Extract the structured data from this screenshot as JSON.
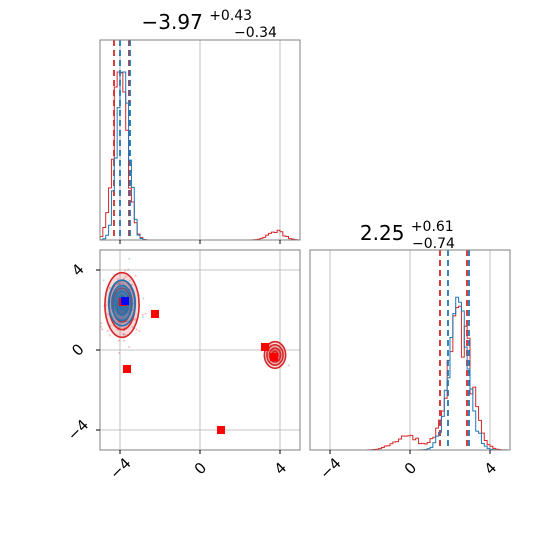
{
  "chart_data": {
    "type": "corner",
    "parameters": [
      {
        "title_value": "2.25",
        "title_prefix": "−3.97",
        "title_plus": "+0.43",
        "title_minus": "−0.34"
      },
      {
        "title_prefix": "2.25",
        "title_plus": "+0.61",
        "title_minus": "−0.74"
      }
    ],
    "axis_range": [
      -5,
      5
    ],
    "ticks": [
      -4,
      0,
      4
    ],
    "tick_labels": [
      "−4",
      "0",
      "4"
    ],
    "grid": true,
    "colors": {
      "red": "#d62728",
      "blue": "#1f77b4",
      "marker_red": "#ff0000",
      "marker_blue": "#0000ff",
      "grid": "#b0b0b0"
    },
    "series": [
      {
        "color": "#d62728",
        "param1_quantile_lines": [
          -4.3,
          -3.55
        ],
        "param2_quantile_lines": [
          1.5,
          2.85
        ],
        "param1_hist_peaks": [
          {
            "x": -3.97,
            "height": 1.0,
            "width": 0.35
          },
          {
            "x": 3.8,
            "height": 0.05,
            "width": 0.4
          }
        ],
        "param2_hist_peaks": [
          {
            "x": 2.45,
            "height": 0.7,
            "width": 0.6
          },
          {
            "x": -0.2,
            "height": 0.08,
            "width": 0.6
          }
        ],
        "clusters": [
          {
            "x": -3.9,
            "y": 2.25,
            "sx": 0.45,
            "sy": 0.85,
            "weight": 0.95
          },
          {
            "x": 3.75,
            "y": -0.25,
            "sx": 0.28,
            "sy": 0.35,
            "weight": 0.05
          }
        ]
      },
      {
        "color": "#1f77b4",
        "param1_quantile_lines": [
          -4.0,
          -3.5
        ],
        "param2_quantile_lines": [
          1.9,
          2.95
        ],
        "param1_hist_peaks": [
          {
            "x": -3.85,
            "height": 1.0,
            "width": 0.3
          }
        ],
        "param2_hist_peaks": [
          {
            "x": 2.45,
            "height": 0.72,
            "width": 0.5
          }
        ],
        "clusters": [
          {
            "x": -3.9,
            "y": 2.35,
            "sx": 0.35,
            "sy": 0.6,
            "weight": 1.0
          }
        ]
      }
    ],
    "markers": {
      "red": [
        {
          "x": -2.25,
          "y": 1.8
        },
        {
          "x": -3.65,
          "y": -0.95
        },
        {
          "x": 1.05,
          "y": -4.0
        },
        {
          "x": 3.25,
          "y": 0.15
        },
        {
          "x": 3.7,
          "y": -0.35
        },
        {
          "x": -3.85,
          "y": 2.4
        }
      ],
      "blue": [
        {
          "x": -3.75,
          "y": 2.45
        }
      ]
    }
  }
}
